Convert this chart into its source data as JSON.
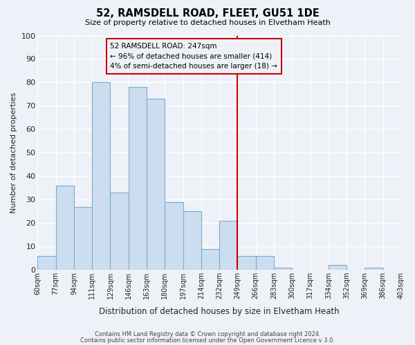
{
  "title": "52, RAMSDELL ROAD, FLEET, GU51 1DE",
  "subtitle": "Size of property relative to detached houses in Elvetham Heath",
  "xlabel": "Distribution of detached houses by size in Elvetham Heath",
  "ylabel": "Number of detached properties",
  "footer_line1": "Contains HM Land Registry data © Crown copyright and database right 2024.",
  "footer_line2": "Contains public sector information licensed under the Open Government Licence v 3.0.",
  "bin_labels": [
    "60sqm",
    "77sqm",
    "94sqm",
    "111sqm",
    "129sqm",
    "146sqm",
    "163sqm",
    "180sqm",
    "197sqm",
    "214sqm",
    "232sqm",
    "249sqm",
    "266sqm",
    "283sqm",
    "300sqm",
    "317sqm",
    "334sqm",
    "352sqm",
    "369sqm",
    "386sqm",
    "403sqm"
  ],
  "bar_heights": [
    6,
    36,
    27,
    80,
    33,
    78,
    73,
    29,
    25,
    9,
    21,
    6,
    6,
    1,
    0,
    0,
    2,
    0,
    1,
    0
  ],
  "bar_color": "#ccddf0",
  "bar_edge_color": "#7aabcf",
  "annotation_title": "52 RAMSDELL ROAD: 247sqm",
  "annotation_line1": "← 96% of detached houses are smaller (414)",
  "annotation_line2": "4% of semi-detached houses are larger (18) →",
  "annotation_box_color": "#cc0000",
  "red_line_bin_index": 11,
  "ylim": [
    0,
    100
  ],
  "yticks": [
    0,
    10,
    20,
    30,
    40,
    50,
    60,
    70,
    80,
    90,
    100
  ],
  "background_color": "#eef2f8",
  "grid_color": "#ffffff"
}
